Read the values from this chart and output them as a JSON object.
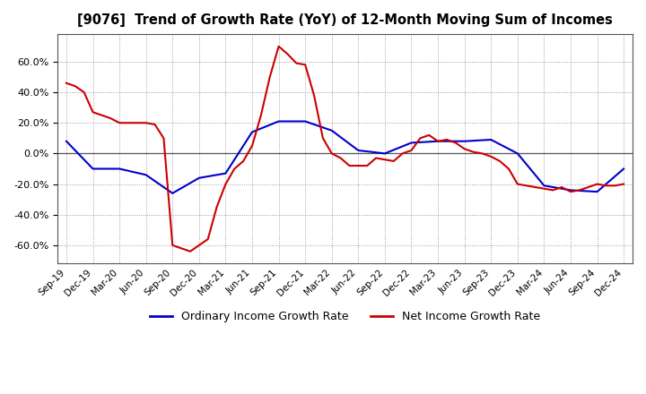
{
  "title": "[9076]  Trend of Growth Rate (YoY) of 12-Month Moving Sum of Incomes",
  "x_labels": [
    "Sep-19",
    "Dec-19",
    "Mar-20",
    "Jun-20",
    "Sep-20",
    "Dec-20",
    "Mar-21",
    "Jun-21",
    "Sep-21",
    "Dec-21",
    "Mar-22",
    "Jun-22",
    "Sep-22",
    "Dec-22",
    "Mar-23",
    "Jun-23",
    "Sep-23",
    "Dec-23",
    "Mar-24",
    "Jun-24",
    "Sep-24",
    "Dec-24"
  ],
  "ordinary_income_x": [
    0,
    3,
    6,
    9,
    12,
    15,
    18,
    21,
    24,
    27,
    30,
    33,
    36,
    39,
    42,
    45,
    48,
    51,
    54,
    57,
    60,
    63
  ],
  "ordinary_income_y": [
    0.08,
    -0.1,
    -0.1,
    -0.14,
    -0.26,
    -0.16,
    -0.13,
    0.14,
    0.21,
    0.21,
    0.15,
    0.02,
    0.0,
    0.07,
    0.08,
    0.08,
    0.09,
    0.0,
    -0.21,
    -0.24,
    -0.25,
    -0.1
  ],
  "net_income_x": [
    0,
    1,
    2,
    3,
    4,
    5,
    6,
    7,
    8,
    9,
    10,
    11,
    12,
    13,
    14,
    15,
    16,
    17,
    18,
    19,
    20,
    21,
    22,
    23,
    24,
    25,
    26,
    27,
    28,
    29,
    30,
    31,
    32,
    33,
    34,
    35,
    36,
    37,
    38,
    39,
    40,
    41,
    42,
    43,
    44,
    45,
    46,
    47,
    48,
    49,
    50,
    51,
    52,
    53,
    54,
    55,
    56,
    57,
    58,
    59,
    60,
    61,
    62,
    63
  ],
  "net_income_y": [
    0.46,
    0.44,
    0.4,
    0.27,
    0.25,
    0.23,
    0.2,
    0.2,
    0.2,
    0.2,
    0.19,
    0.1,
    -0.6,
    -0.62,
    -0.64,
    -0.6,
    -0.56,
    -0.35,
    -0.2,
    -0.1,
    -0.05,
    0.05,
    0.25,
    0.5,
    0.7,
    0.65,
    0.59,
    0.58,
    0.38,
    0.1,
    0.0,
    -0.03,
    -0.08,
    -0.08,
    -0.08,
    -0.03,
    -0.04,
    -0.05,
    0.0,
    0.02,
    0.1,
    0.12,
    0.08,
    0.09,
    0.07,
    0.03,
    0.01,
    0.0,
    -0.02,
    -0.05,
    -0.1,
    -0.2,
    -0.21,
    -0.22,
    -0.23,
    -0.24,
    -0.22,
    -0.25,
    -0.24,
    -0.22,
    -0.2,
    -0.21,
    -0.21,
    -0.2
  ],
  "ylim": [
    -0.72,
    0.78
  ],
  "yticks": [
    -0.6,
    -0.4,
    -0.2,
    0.0,
    0.2,
    0.4,
    0.6
  ],
  "ordinary_color": "#0000cc",
  "net_color": "#cc0000",
  "background_color": "#ffffff",
  "grid_color": "#888888",
  "legend_ordinary": "Ordinary Income Growth Rate",
  "legend_net": "Net Income Growth Rate"
}
